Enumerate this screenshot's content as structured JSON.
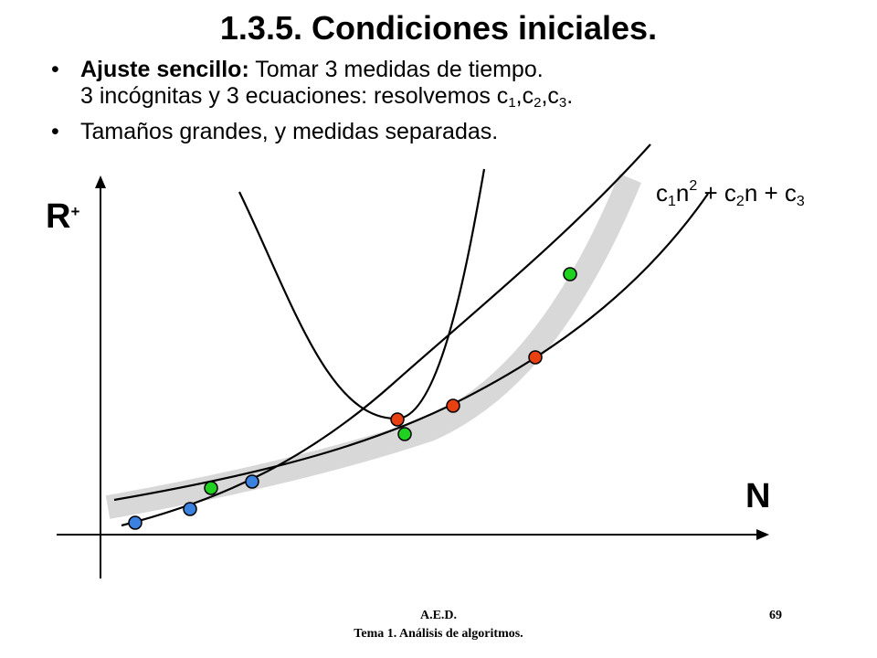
{
  "title": "1.3.5. Condiciones iniciales.",
  "bullets": {
    "b1_bold": "Ajuste sencillo:",
    "b1_text": " Tomar 3 medidas de tiempo.",
    "b1_line2": "3 incógnitas y 3 ecuaciones: resolvemos c",
    "b1_sub1": "1",
    "b1_comma1": ",c",
    "b1_sub2": "2",
    "b1_comma2": ",c",
    "b1_sub3": "3",
    "b1_end": ".",
    "b2_text": "Tamaños grandes, y medidas separadas."
  },
  "axes": {
    "y_label": "R",
    "y_label_sup": "+",
    "x_label": "N"
  },
  "formula": {
    "c1": "c",
    "s1": "1",
    "n2": "n",
    "p2": "2",
    "plus1": " + c",
    "s2": "2",
    "n1": "n + c",
    "s3": "3"
  },
  "footer": {
    "line1": "A.E.D.",
    "line2": "Tema 1. Análisis de algoritmos.",
    "page": "69"
  },
  "colors": {
    "blue_points": "#3b82e0",
    "green_points": "#1fd21f",
    "red_points": "#e84010",
    "band": "#d8d8d8"
  }
}
